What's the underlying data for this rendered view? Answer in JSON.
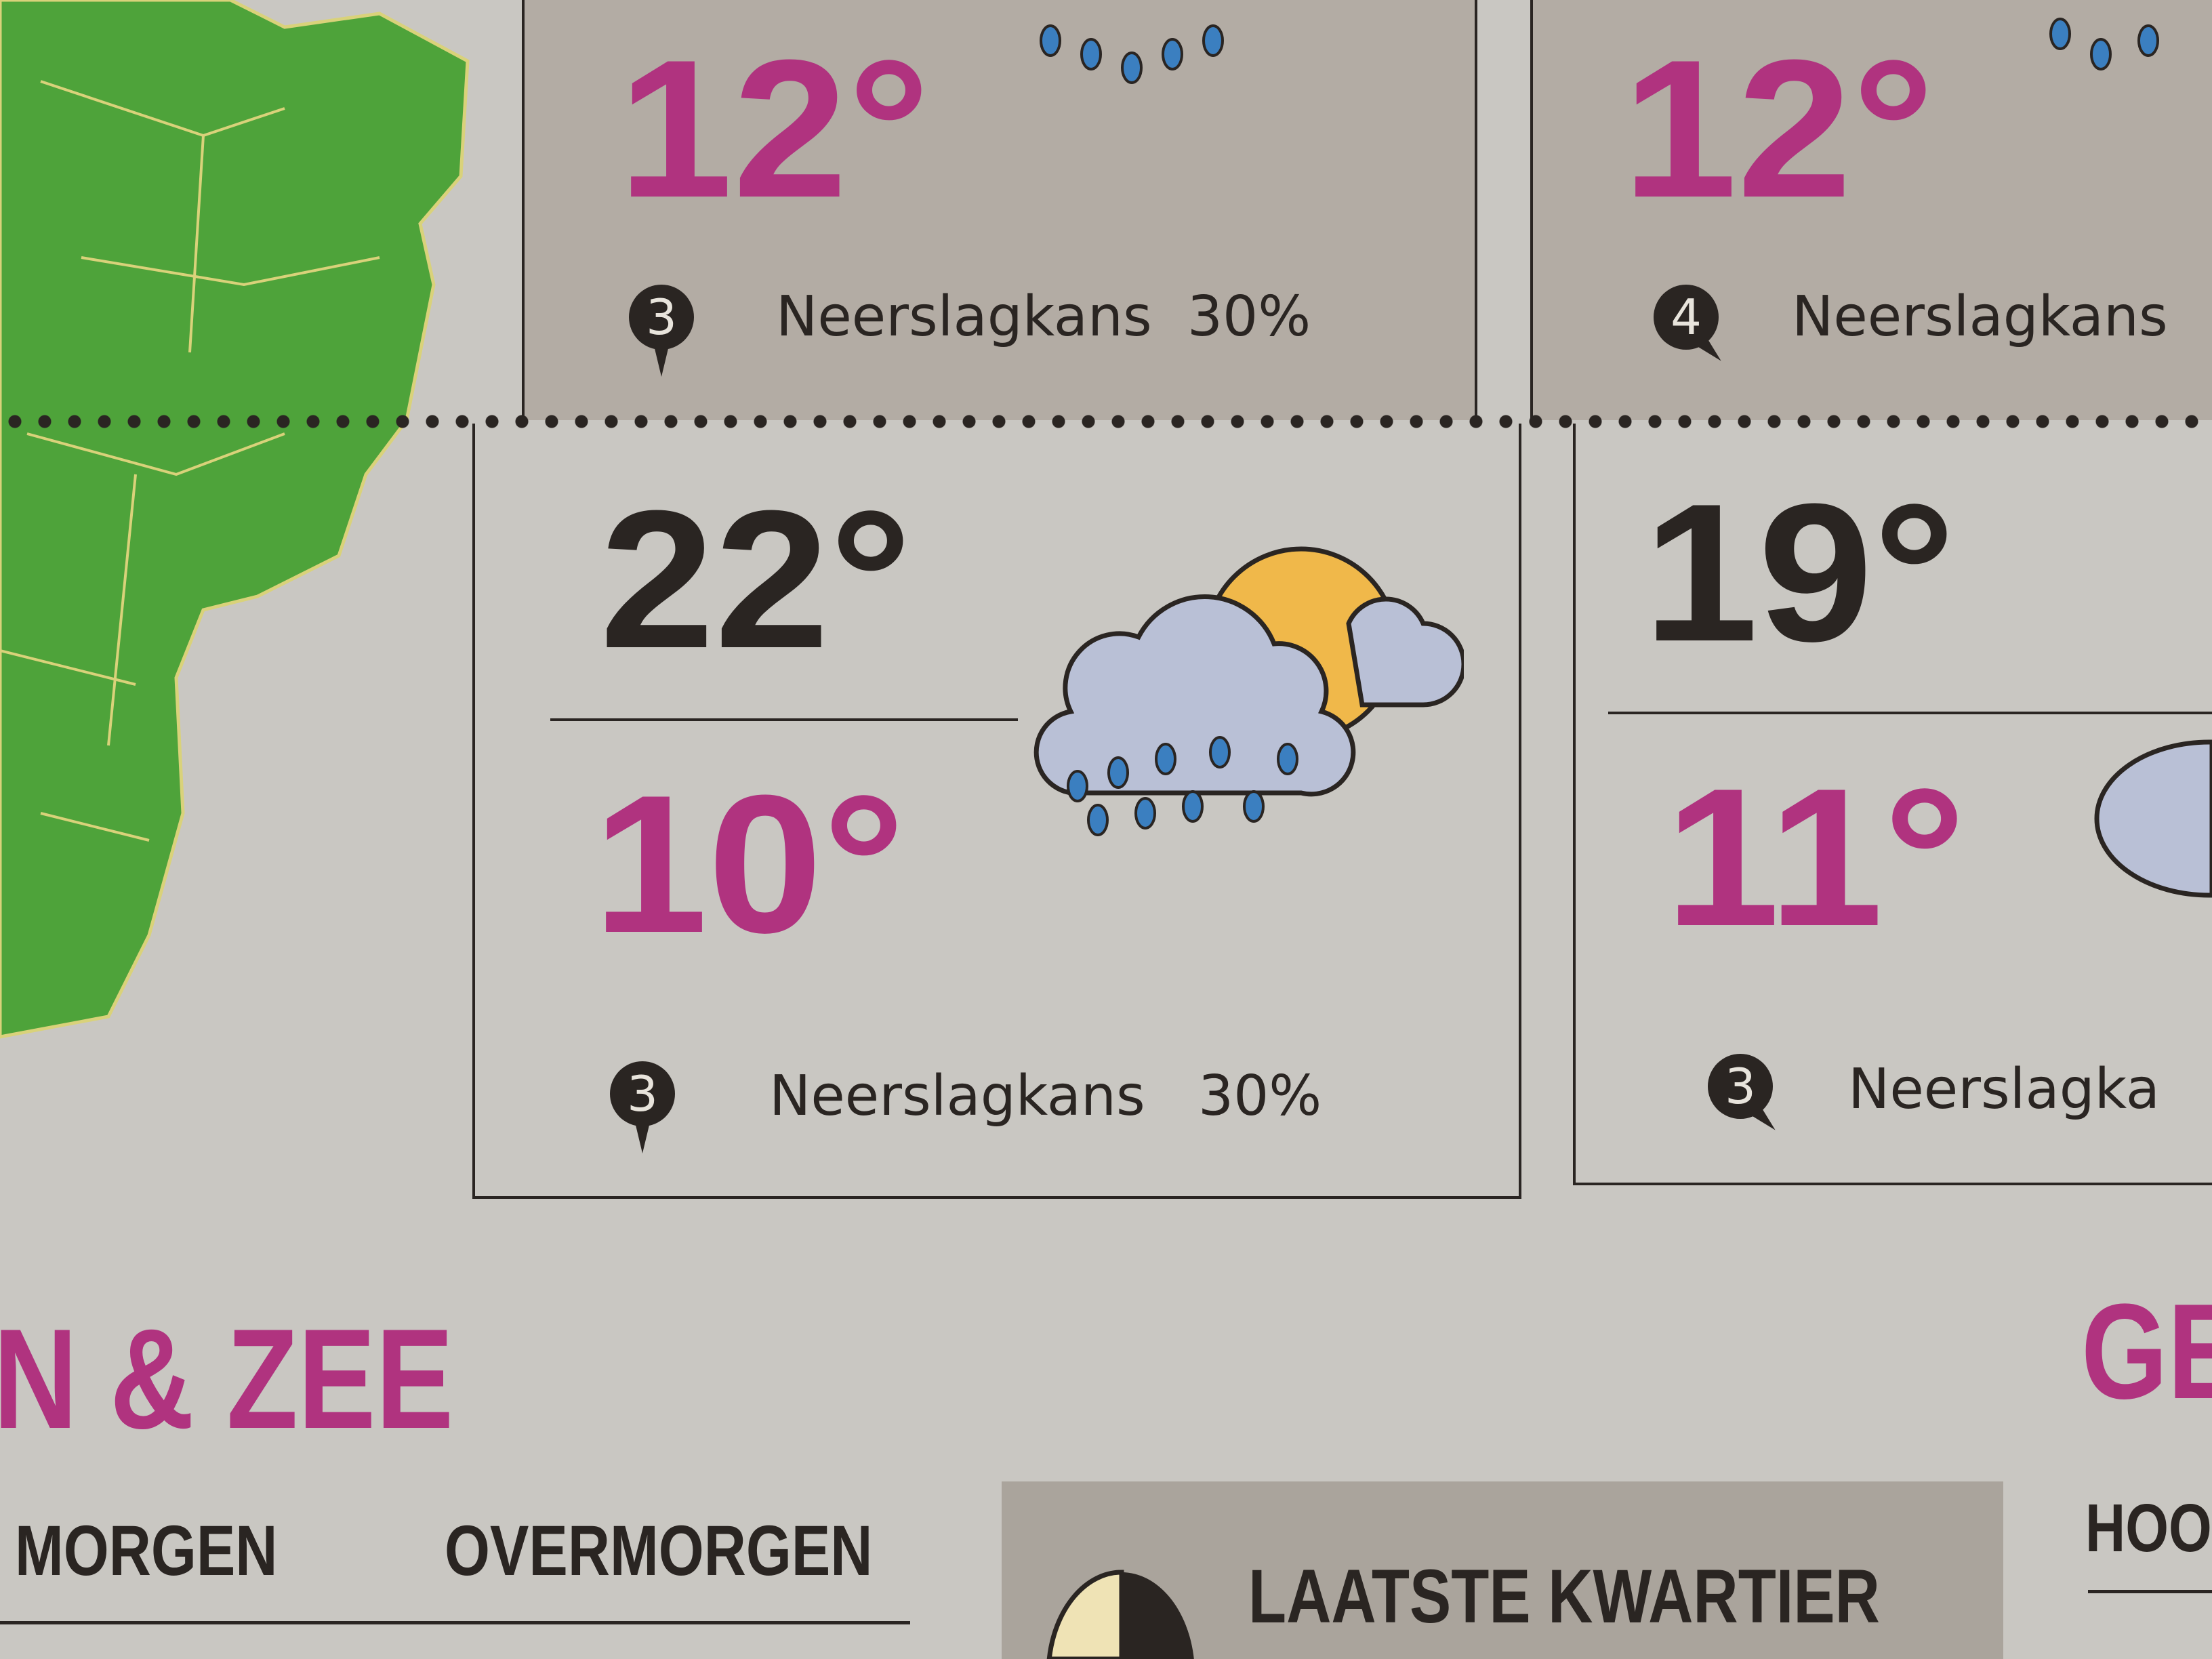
{
  "colors": {
    "high_temp": "#2a2522",
    "low_temp": "#b0337f",
    "map_green": "#4ea33a",
    "panel_shade": "#b3aca4"
  },
  "top_row": [
    {
      "low": "12°",
      "wind": "3",
      "wind_direction": "south",
      "precip_label": "Neerslagkans",
      "precip": "30%",
      "icon": "cloud-sun-rain-icon"
    },
    {
      "low": "12°",
      "wind": "4",
      "wind_direction": "southeast",
      "precip_label": "Neerslagkans",
      "icon": "cloud-rain-icon"
    }
  ],
  "bottom_row": [
    {
      "high": "22°",
      "low": "10°",
      "wind": "3",
      "wind_direction": "south",
      "precip_label": "Neerslagkans",
      "precip": "30%",
      "icon": "cloud-sun-rain-icon"
    },
    {
      "high": "19°",
      "low": "11°",
      "wind": "3",
      "wind_direction": "southeast",
      "precip_label": "Neerslagka",
      "icon": "cloud-icon"
    }
  ],
  "sections": {
    "strand_zee": "N & ZEE",
    "tabs": [
      "MORGEN",
      "OVERMORGEN"
    ],
    "moon_phase": "LAATSTE KWARTIER",
    "right_heading": "GE",
    "right_sub": "HOO"
  }
}
